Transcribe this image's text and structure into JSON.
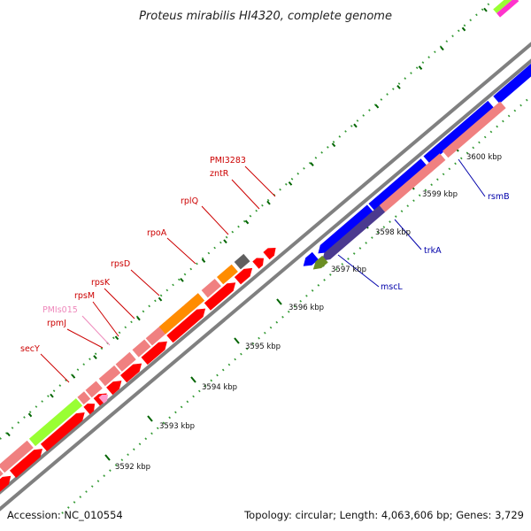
{
  "title": "Proteus mirabilis HI4320, complete genome",
  "footer": {
    "accession": "Accession: NC_010554",
    "summary": "Topology: circular; Length: 4,063,606 bp; Genes: 3,729"
  },
  "scale_labels": [
    "3592 kbp",
    "3593 kbp",
    "3594 kbp",
    "3595 kbp",
    "3596 kbp",
    "3597 kbp",
    "3598 kbp",
    "3599 kbp",
    "3600 kbp"
  ],
  "gene_labels_upper": [
    "PMI3283",
    "zntR",
    "rplQ",
    "rpoA",
    "rpsD",
    "rpsK",
    "rpsM",
    "PMIs015",
    "rpmJ",
    "secY"
  ],
  "gene_labels_lower": [
    "rsmB",
    "trkA",
    "mscL"
  ],
  "colors": {
    "gene_red": "#ff0000",
    "rna_pink": "#f08080",
    "backbone": "#808080",
    "tick_green": "#006400",
    "label_red": "#cc0000",
    "label_blue": "#0000aa",
    "label_pink": "#ee88bb",
    "gene_blue": "#0000ff",
    "gene_darkblue": "#4b3a8f",
    "gene_orange": "#ff8c00",
    "gene_lime": "#99ff33",
    "gene_olive": "#6b8e23",
    "gene_gray": "#606060"
  }
}
